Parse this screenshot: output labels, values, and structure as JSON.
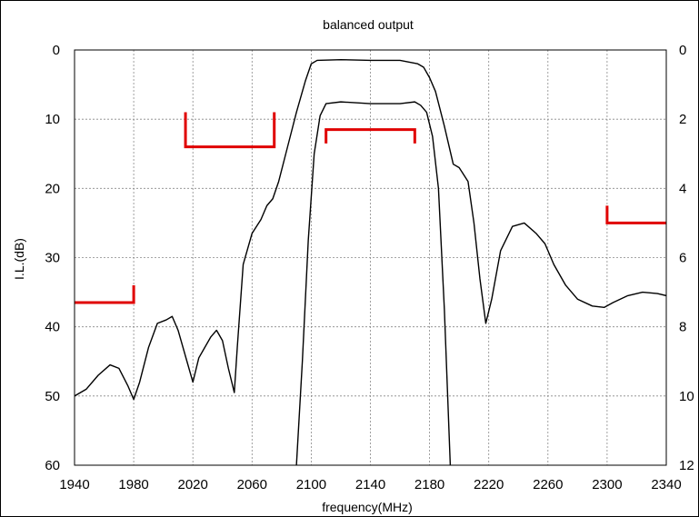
{
  "chart_data": {
    "type": "line",
    "title": "balanced output",
    "xlabel": "frequency(MHz)",
    "ylabel": "I.L.(dB)",
    "xlim": [
      1940,
      2340
    ],
    "ylim": [
      0,
      60
    ],
    "y2lim": [
      0,
      12
    ],
    "y_inverted": true,
    "grid": true,
    "x_ticks": [
      "1940",
      "1980",
      "2020",
      "2060",
      "2100",
      "2140",
      "2180",
      "2220",
      "2260",
      "2300",
      "2340"
    ],
    "y_ticks": [
      "0",
      "10",
      "20",
      "30",
      "40",
      "50",
      "60"
    ],
    "y2_ticks": [
      "0",
      "2",
      "4",
      "6",
      "8",
      "10",
      "12"
    ],
    "series": [
      {
        "axis": "left",
        "color": "#000000",
        "x": [
          1940,
          1948,
          1956,
          1964,
          1970,
          1976,
          1980,
          1984,
          1990,
          1996,
          2002,
          2006,
          2010,
          2016,
          2020,
          2024,
          2028,
          2032,
          2036,
          2040,
          2044,
          2048,
          2050,
          2054,
          2060,
          2066,
          2070,
          2074,
          2078,
          2084,
          2090,
          2096,
          2100,
          2104,
          2120,
          2140,
          2160,
          2172,
          2176,
          2180,
          2184,
          2190,
          2196,
          2200,
          2206,
          2210,
          2214,
          2218,
          2222,
          2228,
          2236,
          2244,
          2252,
          2258,
          2264,
          2272,
          2280,
          2290,
          2298,
          2304,
          2314,
          2324,
          2334,
          2340
        ],
        "y": [
          50,
          49,
          47,
          45.5,
          46,
          48.5,
          50.5,
          48,
          43,
          39.5,
          39,
          38.5,
          40.5,
          45,
          48,
          44.5,
          43,
          41.5,
          40.5,
          42,
          46,
          49.5,
          43,
          31,
          26.5,
          24.5,
          22.5,
          21.5,
          19,
          14,
          9,
          4.5,
          2,
          1.5,
          1.4,
          1.5,
          1.5,
          2,
          2.5,
          4,
          6,
          11,
          16.5,
          17,
          19,
          25,
          33,
          39.5,
          36,
          29,
          25.5,
          25,
          26.5,
          28,
          31,
          34,
          36,
          37,
          37.2,
          36.5,
          35.5,
          35,
          35.2,
          35.5
        ]
      },
      {
        "axis": "right",
        "color": "#000000",
        "x": [
          2090,
          2094,
          2098,
          2102,
          2106,
          2110,
          2120,
          2140,
          2160,
          2170,
          2174,
          2178,
          2182,
          2186,
          2190,
          2194
        ],
        "y": [
          12,
          9,
          5.5,
          3,
          1.9,
          1.55,
          1.5,
          1.55,
          1.55,
          1.5,
          1.6,
          1.8,
          2.5,
          4,
          7.5,
          12
        ]
      }
    ],
    "spec_masks": [
      {
        "color": "#e00000",
        "points": [
          [
            1940,
            36.5
          ],
          [
            1980,
            36.5
          ],
          [
            1980,
            34
          ]
        ]
      },
      {
        "color": "#e00000",
        "points": [
          [
            2015,
            9
          ],
          [
            2015,
            14
          ],
          [
            2075,
            14
          ],
          [
            2075,
            9
          ]
        ]
      },
      {
        "color": "#e00000",
        "points": [
          [
            2110,
            13.5
          ],
          [
            2110,
            11.5
          ],
          [
            2170,
            11.5
          ],
          [
            2170,
            13.5
          ]
        ]
      },
      {
        "color": "#e00000",
        "points": [
          [
            2300,
            22.5
          ],
          [
            2300,
            25
          ],
          [
            2340,
            25
          ]
        ]
      }
    ]
  }
}
